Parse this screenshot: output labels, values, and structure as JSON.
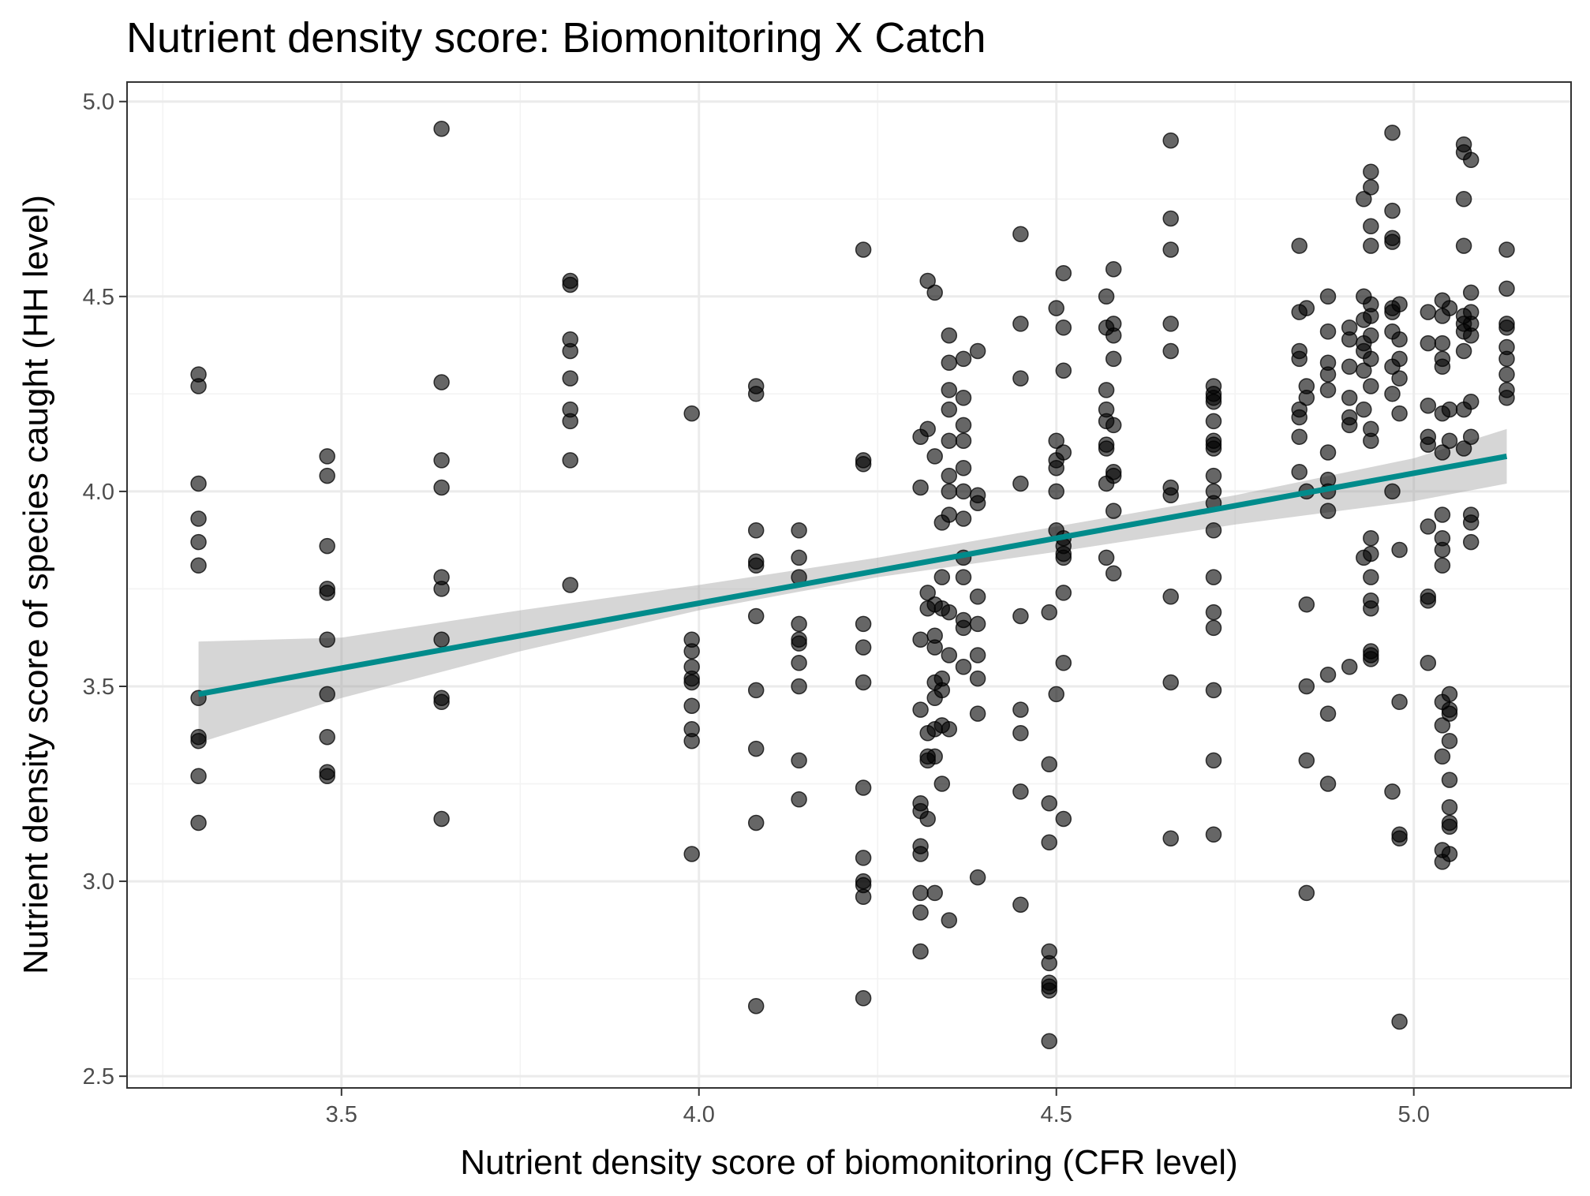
{
  "chart_data": {
    "type": "scatter",
    "title": "Nutrient density score: Biomonitoring X Catch",
    "xlabel": "Nutrient density score of biomonitoring (CFR level)",
    "ylabel": "Nutrient density score of species caught (HH level)",
    "xlim": [
      3.2,
      5.22
    ],
    "ylim": [
      2.47,
      5.05
    ],
    "x_ticks": [
      "3.5",
      "4.0",
      "4.5",
      "5.0"
    ],
    "x_tick_values": [
      3.5,
      4.0,
      4.5,
      5.0
    ],
    "x_minor_ticks": [
      3.25,
      3.75,
      4.25,
      4.75
    ],
    "y_ticks": [
      "2.5",
      "3.0",
      "3.5",
      "4.0",
      "4.5",
      "5.0"
    ],
    "y_tick_values": [
      2.5,
      3.0,
      3.5,
      4.0,
      4.5,
      5.0
    ],
    "y_minor_ticks": [
      2.75,
      3.25,
      3.75,
      4.25,
      4.75
    ],
    "grid": true,
    "colors": {
      "fit_line": "#008b8b",
      "ribbon": "#999999",
      "points": "#000000"
    },
    "fit": {
      "method": "linear regression",
      "x": [
        3.3,
        5.13
      ],
      "y": [
        3.48,
        4.09
      ],
      "ribbon": {
        "x": [
          3.3,
          3.5,
          3.75,
          4.0,
          4.25,
          4.5,
          4.75,
          5.0,
          5.13
        ],
        "lower": [
          3.355,
          3.47,
          3.59,
          3.695,
          3.78,
          3.845,
          3.915,
          3.975,
          4.02
        ],
        "upper": [
          3.615,
          3.625,
          3.695,
          3.76,
          3.83,
          3.91,
          3.99,
          4.085,
          4.16
        ]
      }
    },
    "points": [
      [
        3.3,
        4.3
      ],
      [
        3.3,
        4.27
      ],
      [
        3.3,
        4.02
      ],
      [
        3.3,
        3.93
      ],
      [
        3.3,
        3.87
      ],
      [
        3.3,
        3.81
      ],
      [
        3.3,
        3.47
      ],
      [
        3.3,
        3.37
      ],
      [
        3.3,
        3.36
      ],
      [
        3.3,
        3.27
      ],
      [
        3.3,
        3.15
      ],
      [
        3.48,
        4.09
      ],
      [
        3.48,
        4.04
      ],
      [
        3.48,
        3.86
      ],
      [
        3.48,
        3.75
      ],
      [
        3.48,
        3.74
      ],
      [
        3.48,
        3.62
      ],
      [
        3.48,
        3.48
      ],
      [
        3.48,
        3.37
      ],
      [
        3.48,
        3.28
      ],
      [
        3.48,
        3.27
      ],
      [
        3.64,
        4.93
      ],
      [
        3.64,
        4.28
      ],
      [
        3.64,
        4.08
      ],
      [
        3.64,
        4.01
      ],
      [
        3.64,
        3.78
      ],
      [
        3.64,
        3.75
      ],
      [
        3.64,
        3.62
      ],
      [
        3.64,
        3.47
      ],
      [
        3.64,
        3.46
      ],
      [
        3.64,
        3.16
      ],
      [
        3.82,
        4.54
      ],
      [
        3.82,
        4.53
      ],
      [
        3.82,
        4.39
      ],
      [
        3.82,
        4.36
      ],
      [
        3.82,
        4.29
      ],
      [
        3.82,
        4.21
      ],
      [
        3.82,
        4.18
      ],
      [
        3.82,
        4.08
      ],
      [
        3.82,
        3.76
      ],
      [
        3.99,
        4.2
      ],
      [
        3.99,
        3.62
      ],
      [
        3.99,
        3.59
      ],
      [
        3.99,
        3.55
      ],
      [
        3.99,
        3.52
      ],
      [
        3.99,
        3.51
      ],
      [
        3.99,
        3.45
      ],
      [
        3.99,
        3.39
      ],
      [
        3.99,
        3.36
      ],
      [
        3.99,
        3.07
      ],
      [
        4.08,
        4.27
      ],
      [
        4.08,
        4.25
      ],
      [
        4.08,
        3.9
      ],
      [
        4.08,
        3.82
      ],
      [
        4.08,
        3.81
      ],
      [
        4.08,
        3.68
      ],
      [
        4.08,
        3.49
      ],
      [
        4.08,
        3.34
      ],
      [
        4.08,
        3.15
      ],
      [
        4.08,
        2.68
      ],
      [
        4.14,
        3.9
      ],
      [
        4.14,
        3.83
      ],
      [
        4.14,
        3.78
      ],
      [
        4.14,
        3.66
      ],
      [
        4.14,
        3.62
      ],
      [
        4.14,
        3.61
      ],
      [
        4.14,
        3.56
      ],
      [
        4.14,
        3.5
      ],
      [
        4.14,
        3.31
      ],
      [
        4.14,
        3.21
      ],
      [
        4.23,
        4.62
      ],
      [
        4.23,
        4.08
      ],
      [
        4.23,
        4.07
      ],
      [
        4.23,
        3.66
      ],
      [
        4.23,
        3.6
      ],
      [
        4.23,
        3.51
      ],
      [
        4.23,
        3.24
      ],
      [
        4.23,
        3.06
      ],
      [
        4.23,
        3.0
      ],
      [
        4.23,
        2.99
      ],
      [
        4.23,
        2.96
      ],
      [
        4.23,
        2.7
      ],
      [
        4.31,
        4.14
      ],
      [
        4.31,
        4.01
      ],
      [
        4.31,
        3.62
      ],
      [
        4.31,
        3.44
      ],
      [
        4.31,
        3.2
      ],
      [
        4.31,
        3.18
      ],
      [
        4.31,
        3.09
      ],
      [
        4.31,
        3.07
      ],
      [
        4.31,
        2.97
      ],
      [
        4.31,
        2.92
      ],
      [
        4.31,
        2.82
      ],
      [
        4.32,
        4.54
      ],
      [
        4.32,
        4.16
      ],
      [
        4.32,
        3.74
      ],
      [
        4.32,
        3.7
      ],
      [
        4.32,
        3.38
      ],
      [
        4.32,
        3.32
      ],
      [
        4.32,
        3.31
      ],
      [
        4.32,
        3.16
      ],
      [
        4.33,
        4.51
      ],
      [
        4.33,
        4.09
      ],
      [
        4.33,
        3.71
      ],
      [
        4.33,
        3.63
      ],
      [
        4.33,
        3.6
      ],
      [
        4.33,
        3.51
      ],
      [
        4.33,
        3.47
      ],
      [
        4.33,
        3.39
      ],
      [
        4.33,
        3.32
      ],
      [
        4.33,
        2.97
      ],
      [
        4.34,
        3.92
      ],
      [
        4.34,
        3.78
      ],
      [
        4.34,
        3.7
      ],
      [
        4.34,
        3.52
      ],
      [
        4.34,
        3.49
      ],
      [
        4.34,
        3.4
      ],
      [
        4.34,
        3.25
      ],
      [
        4.35,
        4.4
      ],
      [
        4.35,
        4.33
      ],
      [
        4.35,
        4.26
      ],
      [
        4.35,
        4.21
      ],
      [
        4.35,
        4.13
      ],
      [
        4.35,
        4.04
      ],
      [
        4.35,
        4.0
      ],
      [
        4.35,
        3.94
      ],
      [
        4.35,
        3.69
      ],
      [
        4.35,
        3.58
      ],
      [
        4.35,
        3.39
      ],
      [
        4.35,
        2.9
      ],
      [
        4.37,
        4.34
      ],
      [
        4.37,
        4.24
      ],
      [
        4.37,
        4.17
      ],
      [
        4.37,
        4.13
      ],
      [
        4.37,
        4.06
      ],
      [
        4.37,
        4.0
      ],
      [
        4.37,
        3.93
      ],
      [
        4.37,
        3.83
      ],
      [
        4.37,
        3.78
      ],
      [
        4.37,
        3.67
      ],
      [
        4.37,
        3.65
      ],
      [
        4.37,
        3.55
      ],
      [
        4.39,
        4.36
      ],
      [
        4.39,
        3.99
      ],
      [
        4.39,
        3.97
      ],
      [
        4.39,
        3.73
      ],
      [
        4.39,
        3.66
      ],
      [
        4.39,
        3.58
      ],
      [
        4.39,
        3.52
      ],
      [
        4.39,
        3.43
      ],
      [
        4.39,
        3.01
      ],
      [
        4.45,
        4.66
      ],
      [
        4.45,
        4.43
      ],
      [
        4.45,
        4.29
      ],
      [
        4.45,
        4.02
      ],
      [
        4.45,
        3.68
      ],
      [
        4.45,
        3.44
      ],
      [
        4.45,
        3.38
      ],
      [
        4.45,
        3.23
      ],
      [
        4.45,
        2.94
      ],
      [
        4.49,
        3.69
      ],
      [
        4.49,
        3.3
      ],
      [
        4.49,
        3.2
      ],
      [
        4.49,
        3.1
      ],
      [
        4.49,
        2.82
      ],
      [
        4.49,
        2.79
      ],
      [
        4.49,
        2.74
      ],
      [
        4.49,
        2.73
      ],
      [
        4.49,
        2.72
      ],
      [
        4.49,
        2.59
      ],
      [
        4.5,
        4.47
      ],
      [
        4.5,
        4.13
      ],
      [
        4.5,
        4.08
      ],
      [
        4.5,
        4.06
      ],
      [
        4.5,
        4.0
      ],
      [
        4.5,
        3.9
      ],
      [
        4.5,
        3.48
      ],
      [
        4.51,
        4.56
      ],
      [
        4.51,
        4.42
      ],
      [
        4.51,
        4.31
      ],
      [
        4.51,
        4.1
      ],
      [
        4.51,
        3.88
      ],
      [
        4.51,
        3.86
      ],
      [
        4.51,
        3.84
      ],
      [
        4.51,
        3.83
      ],
      [
        4.51,
        3.74
      ],
      [
        4.51,
        3.56
      ],
      [
        4.51,
        3.16
      ],
      [
        4.57,
        4.5
      ],
      [
        4.57,
        4.42
      ],
      [
        4.57,
        4.26
      ],
      [
        4.57,
        4.21
      ],
      [
        4.57,
        4.18
      ],
      [
        4.57,
        4.12
      ],
      [
        4.57,
        4.11
      ],
      [
        4.57,
        4.02
      ],
      [
        4.57,
        3.83
      ],
      [
        4.58,
        4.57
      ],
      [
        4.58,
        4.43
      ],
      [
        4.58,
        4.4
      ],
      [
        4.58,
        4.34
      ],
      [
        4.58,
        4.17
      ],
      [
        4.58,
        4.05
      ],
      [
        4.58,
        4.04
      ],
      [
        4.58,
        3.95
      ],
      [
        4.58,
        3.79
      ],
      [
        4.66,
        4.9
      ],
      [
        4.66,
        4.7
      ],
      [
        4.66,
        4.62
      ],
      [
        4.66,
        4.43
      ],
      [
        4.66,
        4.36
      ],
      [
        4.66,
        4.01
      ],
      [
        4.66,
        3.99
      ],
      [
        4.66,
        3.73
      ],
      [
        4.66,
        3.51
      ],
      [
        4.66,
        3.11
      ],
      [
        4.72,
        4.27
      ],
      [
        4.72,
        4.25
      ],
      [
        4.72,
        4.24
      ],
      [
        4.72,
        4.23
      ],
      [
        4.72,
        4.18
      ],
      [
        4.72,
        4.13
      ],
      [
        4.72,
        4.12
      ],
      [
        4.72,
        4.11
      ],
      [
        4.72,
        4.04
      ],
      [
        4.72,
        4.0
      ],
      [
        4.72,
        3.97
      ],
      [
        4.72,
        3.9
      ],
      [
        4.72,
        3.78
      ],
      [
        4.72,
        3.69
      ],
      [
        4.72,
        3.65
      ],
      [
        4.72,
        3.49
      ],
      [
        4.72,
        3.31
      ],
      [
        4.72,
        3.12
      ],
      [
        4.84,
        4.63
      ],
      [
        4.84,
        4.46
      ],
      [
        4.84,
        4.36
      ],
      [
        4.84,
        4.34
      ],
      [
        4.84,
        4.21
      ],
      [
        4.84,
        4.19
      ],
      [
        4.84,
        4.14
      ],
      [
        4.84,
        4.05
      ],
      [
        4.85,
        4.47
      ],
      [
        4.85,
        4.27
      ],
      [
        4.85,
        4.24
      ],
      [
        4.85,
        4.0
      ],
      [
        4.85,
        3.71
      ],
      [
        4.85,
        3.5
      ],
      [
        4.85,
        3.31
      ],
      [
        4.85,
        2.97
      ],
      [
        4.88,
        4.5
      ],
      [
        4.88,
        4.41
      ],
      [
        4.88,
        4.33
      ],
      [
        4.88,
        4.3
      ],
      [
        4.88,
        4.26
      ],
      [
        4.88,
        4.1
      ],
      [
        4.88,
        4.03
      ],
      [
        4.88,
        4.0
      ],
      [
        4.88,
        3.95
      ],
      [
        4.88,
        3.53
      ],
      [
        4.88,
        3.43
      ],
      [
        4.88,
        3.25
      ],
      [
        4.91,
        4.42
      ],
      [
        4.91,
        4.39
      ],
      [
        4.91,
        4.32
      ],
      [
        4.91,
        4.24
      ],
      [
        4.91,
        4.19
      ],
      [
        4.91,
        4.17
      ],
      [
        4.91,
        3.55
      ],
      [
        4.93,
        4.75
      ],
      [
        4.93,
        4.5
      ],
      [
        4.93,
        4.44
      ],
      [
        4.93,
        4.38
      ],
      [
        4.93,
        4.36
      ],
      [
        4.93,
        4.31
      ],
      [
        4.93,
        4.21
      ],
      [
        4.93,
        3.83
      ],
      [
        4.94,
        4.82
      ],
      [
        4.94,
        4.78
      ],
      [
        4.94,
        4.68
      ],
      [
        4.94,
        4.63
      ],
      [
        4.94,
        4.48
      ],
      [
        4.94,
        4.45
      ],
      [
        4.94,
        4.4
      ],
      [
        4.94,
        4.34
      ],
      [
        4.94,
        4.27
      ],
      [
        4.94,
        4.16
      ],
      [
        4.94,
        4.13
      ],
      [
        4.94,
        3.88
      ],
      [
        4.94,
        3.84
      ],
      [
        4.94,
        3.78
      ],
      [
        4.94,
        3.72
      ],
      [
        4.94,
        3.7
      ],
      [
        4.94,
        3.59
      ],
      [
        4.94,
        3.58
      ],
      [
        4.94,
        3.57
      ],
      [
        4.97,
        4.92
      ],
      [
        4.97,
        4.72
      ],
      [
        4.97,
        4.65
      ],
      [
        4.97,
        4.64
      ],
      [
        4.97,
        4.47
      ],
      [
        4.97,
        4.46
      ],
      [
        4.97,
        4.41
      ],
      [
        4.97,
        4.32
      ],
      [
        4.97,
        4.25
      ],
      [
        4.97,
        4.0
      ],
      [
        4.97,
        3.23
      ],
      [
        4.98,
        4.48
      ],
      [
        4.98,
        4.39
      ],
      [
        4.98,
        4.34
      ],
      [
        4.98,
        4.29
      ],
      [
        4.98,
        4.2
      ],
      [
        4.98,
        3.85
      ],
      [
        4.98,
        3.46
      ],
      [
        4.98,
        3.12
      ],
      [
        4.98,
        3.11
      ],
      [
        4.98,
        2.64
      ],
      [
        5.02,
        4.46
      ],
      [
        5.02,
        4.38
      ],
      [
        5.02,
        4.22
      ],
      [
        5.02,
        4.14
      ],
      [
        5.02,
        4.12
      ],
      [
        5.02,
        3.91
      ],
      [
        5.02,
        3.73
      ],
      [
        5.02,
        3.72
      ],
      [
        5.02,
        3.56
      ],
      [
        5.04,
        4.49
      ],
      [
        5.04,
        4.45
      ],
      [
        5.04,
        4.38
      ],
      [
        5.04,
        4.34
      ],
      [
        5.04,
        4.32
      ],
      [
        5.04,
        4.2
      ],
      [
        5.04,
        4.1
      ],
      [
        5.04,
        3.94
      ],
      [
        5.04,
        3.88
      ],
      [
        5.04,
        3.85
      ],
      [
        5.04,
        3.81
      ],
      [
        5.04,
        3.46
      ],
      [
        5.04,
        3.4
      ],
      [
        5.04,
        3.32
      ],
      [
        5.04,
        3.08
      ],
      [
        5.04,
        3.05
      ],
      [
        5.05,
        4.47
      ],
      [
        5.05,
        4.21
      ],
      [
        5.05,
        4.13
      ],
      [
        5.05,
        3.48
      ],
      [
        5.05,
        3.44
      ],
      [
        5.05,
        3.43
      ],
      [
        5.05,
        3.36
      ],
      [
        5.05,
        3.26
      ],
      [
        5.05,
        3.19
      ],
      [
        5.05,
        3.15
      ],
      [
        5.05,
        3.14
      ],
      [
        5.05,
        3.07
      ],
      [
        5.07,
        4.89
      ],
      [
        5.07,
        4.87
      ],
      [
        5.07,
        4.75
      ],
      [
        5.07,
        4.63
      ],
      [
        5.07,
        4.45
      ],
      [
        5.07,
        4.43
      ],
      [
        5.07,
        4.41
      ],
      [
        5.07,
        4.36
      ],
      [
        5.07,
        4.21
      ],
      [
        5.07,
        4.11
      ],
      [
        5.08,
        4.85
      ],
      [
        5.08,
        4.51
      ],
      [
        5.08,
        4.46
      ],
      [
        5.08,
        4.43
      ],
      [
        5.08,
        4.4
      ],
      [
        5.08,
        4.23
      ],
      [
        5.08,
        4.14
      ],
      [
        5.08,
        3.94
      ],
      [
        5.08,
        3.92
      ],
      [
        5.08,
        3.87
      ],
      [
        5.13,
        4.62
      ],
      [
        5.13,
        4.52
      ],
      [
        5.13,
        4.43
      ],
      [
        5.13,
        4.42
      ],
      [
        5.13,
        4.37
      ],
      [
        5.13,
        4.34
      ],
      [
        5.13,
        4.3
      ],
      [
        5.13,
        4.26
      ],
      [
        5.13,
        4.24
      ]
    ]
  }
}
